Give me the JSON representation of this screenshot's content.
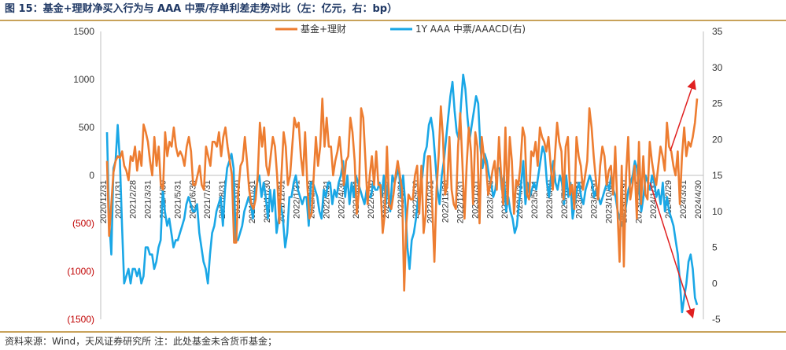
{
  "figure": {
    "title": "图 15：基金+理财净买入行为与 AAA 中票/存单利差走势对比（左：亿元，右：bp）",
    "source": "资料来源：Wind，天风证券研究所  注：此处基金未含货币基金；"
  },
  "colors": {
    "series_orange": "#ed7d31",
    "series_blue": "#1aa7e6",
    "arrow": "#e02020",
    "negative_tick": "#c00000",
    "title": "#1f3864",
    "rule": "#c8a25a"
  },
  "chart_data": {
    "type": "line",
    "title": "",
    "legend_position": "top",
    "grid": false,
    "y_left": {
      "range": [
        -1500,
        1500
      ],
      "ticks": [
        1500,
        1000,
        500,
        0,
        -500,
        -1000,
        -1500
      ],
      "tick_labels": [
        "1500",
        "1000",
        "500",
        "0",
        "(500)",
        "(1000)",
        "(1500)"
      ]
    },
    "y_right": {
      "range": [
        -5,
        35
      ],
      "ticks": [
        35,
        30,
        25,
        20,
        15,
        10,
        5,
        0,
        -5
      ],
      "tick_labels": [
        "35",
        "30",
        "25",
        "20",
        "15",
        "10",
        "5",
        "0",
        "-5"
      ]
    },
    "x": {
      "range": [
        "2020-12-31",
        "2024-05-31"
      ],
      "tick_labels": [
        "2020/12/31",
        "2021/1/31",
        "2021/2/28",
        "2021/3/31",
        "2021/4/30",
        "2021/5/31",
        "2021/6/30",
        "2021/7/31",
        "2021/8/31",
        "2021/9/30",
        "2021/10/31",
        "2021/11/30",
        "2021/12/31",
        "2022/1/31",
        "2022/2/28",
        "2022/3/31",
        "2022/4/30",
        "2022/5/31",
        "2022/6/30",
        "2022/7/31",
        "2022/8/31",
        "2022/9/30",
        "2022/10/31",
        "2022/11/30",
        "2022/12/31",
        "2023/1/31",
        "2023/2/28",
        "2023/3/31",
        "2023/4/30",
        "2023/5/31",
        "2023/6/30",
        "2023/7/31",
        "2023/8/31",
        "2023/9/30",
        "2023/10/31",
        "2023/11/30",
        "2023/12/31",
        "2024/1/31",
        "2024/2/29",
        "2024/3/31",
        "2024/4/30"
      ]
    },
    "series": [
      {
        "name": "基金+理财",
        "axis": "left",
        "color": "#ed7d31",
        "values": [
          150,
          -630,
          -300,
          30,
          150,
          200,
          180,
          250,
          100,
          50,
          -50,
          200,
          150,
          300,
          50,
          250,
          100,
          530,
          450,
          350,
          150,
          0,
          400,
          100,
          300,
          -100,
          -150,
          450,
          200,
          350,
          300,
          500,
          300,
          200,
          250,
          200,
          100,
          300,
          400,
          250,
          -100,
          -100,
          0,
          100,
          -100,
          -150,
          300,
          200,
          100,
          350,
          350,
          300,
          450,
          200,
          400,
          500,
          300,
          150,
          0,
          -700,
          -700,
          -150,
          100,
          150,
          400,
          150,
          -150,
          -300,
          -350,
          -250,
          0,
          550,
          300,
          500,
          100,
          0,
          200,
          400,
          300,
          0,
          -500,
          0,
          450,
          300,
          -100,
          0,
          300,
          600,
          500,
          550,
          200,
          0,
          450,
          -100,
          -450,
          -400,
          0,
          400,
          100,
          300,
          800,
          300,
          600,
          300,
          300,
          0,
          150,
          250,
          400,
          150,
          -100,
          150,
          200,
          600,
          450,
          150,
          -400,
          -150,
          700,
          600,
          150,
          -300,
          0,
          200,
          -100,
          250,
          -100,
          -100,
          -600,
          -400,
          300,
          -300,
          -350,
          -200,
          0,
          150,
          0,
          -150,
          -1200,
          -500,
          -200,
          -250,
          -250,
          0,
          100,
          -400,
          100,
          -600,
          -400,
          200,
          200,
          -300,
          -900,
          -150,
          200,
          720,
          400,
          -200,
          -100,
          400,
          -150,
          -300,
          -350,
          300,
          650,
          150,
          -450,
          100,
          500,
          250,
          -300,
          450,
          300,
          -500,
          400,
          200,
          100,
          -200,
          -100,
          50,
          150,
          -150,
          400,
          0,
          -300,
          500,
          -300,
          400,
          150,
          -400,
          -50,
          -100,
          100,
          500,
          400,
          -200,
          -250,
          250,
          200,
          350,
          100,
          500,
          400,
          350,
          250,
          400,
          100,
          -150,
          200,
          550,
          350,
          250,
          -250,
          300,
          400,
          -200,
          -100,
          -350,
          400,
          200,
          100,
          -150,
          0,
          150,
          700,
          500,
          200,
          -50,
          -250,
          100,
          300,
          200,
          -100,
          50,
          100,
          -200,
          300,
          -350,
          -900,
          100,
          -950,
          0,
          400,
          -250,
          -100,
          100,
          -450,
          350,
          -300,
          200,
          -200,
          -250,
          350,
          150,
          0,
          -100,
          100,
          300,
          200,
          50,
          550,
          300,
          250,
          100,
          0,
          250,
          -300,
          200,
          500,
          200,
          350,
          300,
          400,
          550,
          800
        ]
      },
      {
        "name": "1Y AAA 中票/AAACD(右)",
        "axis": "right",
        "color": "#1aa7e6",
        "values": [
          21,
          9,
          4,
          16,
          17,
          22,
          17,
          8,
          0,
          1,
          2,
          0,
          2,
          2,
          1,
          2,
          0,
          1,
          5,
          5,
          4,
          4,
          2,
          3,
          5,
          6,
          13,
          10,
          8,
          9,
          7,
          5,
          6,
          6,
          7,
          8,
          9,
          11,
          12,
          11,
          10,
          10,
          11,
          7,
          5,
          3,
          2,
          0,
          4,
          7,
          8,
          10,
          11,
          12,
          8,
          13,
          16,
          17,
          18,
          16,
          6,
          6,
          7,
          8,
          10,
          11,
          12,
          11,
          9,
          13,
          14,
          15,
          12,
          14,
          12,
          9,
          13,
          10,
          13,
          7,
          9,
          11,
          9,
          5,
          7,
          12,
          12,
          14,
          15,
          13,
          12,
          11,
          12,
          12,
          8,
          14,
          14,
          13,
          12,
          10,
          9,
          13,
          12,
          14,
          14,
          11,
          13,
          12,
          14,
          15,
          17,
          12,
          15,
          11,
          14,
          12,
          15,
          14,
          13,
          12,
          11,
          13,
          12,
          12,
          14,
          13,
          13,
          14,
          12,
          15,
          11,
          14,
          10,
          15,
          14,
          15,
          16,
          12,
          15,
          11,
          5,
          2,
          6,
          7,
          9,
          12,
          13,
          15,
          18,
          19,
          22,
          23,
          21,
          17,
          13,
          11,
          15,
          17,
          20,
          23,
          26,
          28,
          24,
          21,
          20,
          25,
          29,
          27,
          23,
          20,
          22,
          24,
          26,
          25,
          19,
          16,
          18,
          17,
          15,
          14,
          12,
          13,
          16,
          16,
          13,
          15,
          10,
          12,
          10,
          9,
          7,
          8,
          11,
          14,
          17,
          11,
          14,
          12,
          13,
          14,
          13,
          15,
          17,
          19,
          18,
          14,
          12,
          15,
          17,
          14,
          13,
          15,
          14,
          11,
          15,
          12,
          14,
          9,
          11,
          13,
          14,
          12,
          11,
          13,
          14,
          15,
          14,
          12,
          13,
          12,
          11,
          12,
          13,
          14,
          13,
          15,
          13,
          12,
          10,
          9,
          8,
          9,
          11,
          13,
          14,
          15,
          17,
          16,
          13,
          10,
          12,
          15,
          14,
          13,
          15,
          14,
          12,
          13,
          11,
          14,
          10,
          12,
          10,
          9,
          8,
          6,
          4,
          0,
          -4,
          -2,
          0,
          3,
          4,
          2,
          -2,
          -3
        ]
      }
    ]
  }
}
